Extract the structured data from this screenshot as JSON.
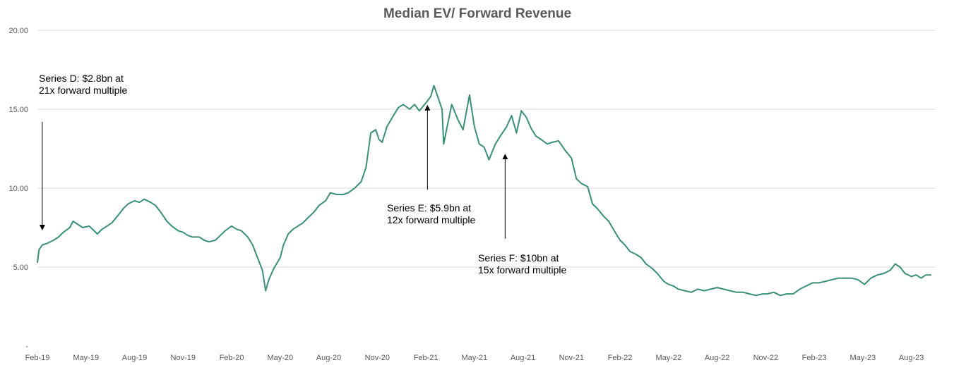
{
  "chart_data": {
    "type": "line",
    "title": "Median EV/ Forward Revenue",
    "xlabel": "",
    "ylabel": "",
    "ylim": [
      0,
      20
    ],
    "grid": true,
    "y_ticks": [
      {
        "value": 0,
        "label": "-"
      },
      {
        "value": 5,
        "label": "5.00"
      },
      {
        "value": 10,
        "label": "10.00"
      },
      {
        "value": 15,
        "label": "15.00"
      },
      {
        "value": 20,
        "label": "20.00"
      }
    ],
    "x_ticks": [
      {
        "index": 0,
        "label": "Feb-19"
      },
      {
        "index": 3,
        "label": "May-19"
      },
      {
        "index": 6,
        "label": "Aug-19"
      },
      {
        "index": 9,
        "label": "Nov-19"
      },
      {
        "index": 12,
        "label": "Feb-20"
      },
      {
        "index": 15,
        "label": "May-20"
      },
      {
        "index": 18,
        "label": "Aug-20"
      },
      {
        "index": 21,
        "label": "Nov-20"
      },
      {
        "index": 24,
        "label": "Feb-21"
      },
      {
        "index": 27,
        "label": "May-21"
      },
      {
        "index": 30,
        "label": "Aug-21"
      },
      {
        "index": 33,
        "label": "Nov-21"
      },
      {
        "index": 36,
        "label": "Feb-22"
      },
      {
        "index": 39,
        "label": "May-22"
      },
      {
        "index": 42,
        "label": "Aug-22"
      },
      {
        "index": 45,
        "label": "Nov-22"
      },
      {
        "index": 48,
        "label": "Feb-23"
      },
      {
        "index": 51,
        "label": "May-23"
      },
      {
        "index": 54,
        "label": "Aug-23"
      }
    ],
    "x_range": [
      0,
      55.5
    ],
    "series": [
      {
        "name": "Median EV/ Forward Revenue",
        "color": "#3a8f77",
        "points": [
          [
            0,
            5.3
          ],
          [
            0.1,
            6.1
          ],
          [
            0.3,
            6.4
          ],
          [
            0.6,
            6.5
          ],
          [
            1.0,
            6.7
          ],
          [
            1.3,
            6.9
          ],
          [
            1.6,
            7.2
          ],
          [
            2.0,
            7.5
          ],
          [
            2.2,
            7.9
          ],
          [
            2.5,
            7.7
          ],
          [
            2.8,
            7.5
          ],
          [
            3.2,
            7.6
          ],
          [
            3.5,
            7.3
          ],
          [
            3.7,
            7.1
          ],
          [
            4.0,
            7.4
          ],
          [
            4.3,
            7.6
          ],
          [
            4.6,
            7.8
          ],
          [
            5.0,
            8.3
          ],
          [
            5.3,
            8.7
          ],
          [
            5.6,
            9.0
          ],
          [
            6.0,
            9.2
          ],
          [
            6.3,
            9.1
          ],
          [
            6.6,
            9.3
          ],
          [
            7.0,
            9.1
          ],
          [
            7.3,
            8.9
          ],
          [
            7.6,
            8.5
          ],
          [
            8.0,
            7.9
          ],
          [
            8.3,
            7.6
          ],
          [
            8.7,
            7.3
          ],
          [
            9.0,
            7.2
          ],
          [
            9.3,
            7.0
          ],
          [
            9.6,
            6.9
          ],
          [
            10.0,
            6.9
          ],
          [
            10.3,
            6.7
          ],
          [
            10.6,
            6.6
          ],
          [
            11.0,
            6.7
          ],
          [
            11.3,
            7.0
          ],
          [
            11.6,
            7.3
          ],
          [
            12.0,
            7.6
          ],
          [
            12.3,
            7.4
          ],
          [
            12.6,
            7.3
          ],
          [
            13.0,
            6.9
          ],
          [
            13.3,
            6.4
          ],
          [
            13.6,
            5.6
          ],
          [
            13.9,
            4.8
          ],
          [
            14.1,
            3.5
          ],
          [
            14.3,
            4.2
          ],
          [
            14.6,
            4.9
          ],
          [
            15.0,
            5.6
          ],
          [
            15.2,
            6.4
          ],
          [
            15.5,
            7.1
          ],
          [
            15.8,
            7.4
          ],
          [
            16.1,
            7.6
          ],
          [
            16.4,
            7.8
          ],
          [
            16.8,
            8.2
          ],
          [
            17.1,
            8.5
          ],
          [
            17.4,
            8.9
          ],
          [
            17.8,
            9.2
          ],
          [
            18.1,
            9.7
          ],
          [
            18.5,
            9.6
          ],
          [
            18.9,
            9.6
          ],
          [
            19.2,
            9.7
          ],
          [
            19.6,
            10.0
          ],
          [
            20.0,
            10.4
          ],
          [
            20.3,
            11.3
          ],
          [
            20.6,
            13.5
          ],
          [
            20.9,
            13.7
          ],
          [
            21.1,
            13.1
          ],
          [
            21.3,
            12.9
          ],
          [
            21.6,
            13.9
          ],
          [
            22.0,
            14.6
          ],
          [
            22.3,
            15.1
          ],
          [
            22.6,
            15.3
          ],
          [
            23.0,
            15.0
          ],
          [
            23.3,
            15.3
          ],
          [
            23.6,
            14.9
          ],
          [
            24.0,
            15.4
          ],
          [
            24.3,
            15.8
          ],
          [
            24.5,
            16.5
          ],
          [
            24.7,
            15.9
          ],
          [
            25.0,
            15.0
          ],
          [
            25.1,
            12.8
          ],
          [
            25.3,
            13.8
          ],
          [
            25.6,
            15.3
          ],
          [
            26.0,
            14.3
          ],
          [
            26.3,
            13.7
          ],
          [
            26.7,
            15.9
          ],
          [
            27.0,
            13.9
          ],
          [
            27.3,
            12.8
          ],
          [
            27.6,
            12.6
          ],
          [
            27.9,
            11.8
          ],
          [
            28.3,
            12.8
          ],
          [
            28.6,
            13.3
          ],
          [
            29.0,
            13.9
          ],
          [
            29.3,
            14.6
          ],
          [
            29.6,
            13.5
          ],
          [
            29.9,
            14.9
          ],
          [
            30.2,
            14.5
          ],
          [
            30.5,
            13.8
          ],
          [
            30.8,
            13.3
          ],
          [
            31.1,
            13.1
          ],
          [
            31.5,
            12.8
          ],
          [
            31.8,
            12.9
          ],
          [
            32.2,
            13.0
          ],
          [
            32.6,
            12.4
          ],
          [
            33.0,
            11.9
          ],
          [
            33.3,
            10.6
          ],
          [
            33.6,
            10.3
          ],
          [
            34.0,
            10.1
          ],
          [
            34.3,
            9.0
          ],
          [
            34.6,
            8.7
          ],
          [
            35.0,
            8.2
          ],
          [
            35.3,
            7.9
          ],
          [
            35.7,
            7.2
          ],
          [
            36.0,
            6.7
          ],
          [
            36.3,
            6.4
          ],
          [
            36.6,
            6.0
          ],
          [
            37.0,
            5.8
          ],
          [
            37.3,
            5.6
          ],
          [
            37.6,
            5.2
          ],
          [
            38.0,
            4.9
          ],
          [
            38.3,
            4.6
          ],
          [
            38.7,
            4.1
          ],
          [
            39.0,
            3.9
          ],
          [
            39.3,
            3.8
          ],
          [
            39.6,
            3.6
          ],
          [
            40.0,
            3.5
          ],
          [
            40.4,
            3.4
          ],
          [
            40.8,
            3.6
          ],
          [
            41.2,
            3.5
          ],
          [
            41.6,
            3.6
          ],
          [
            42.0,
            3.7
          ],
          [
            42.4,
            3.6
          ],
          [
            42.8,
            3.5
          ],
          [
            43.2,
            3.4
          ],
          [
            43.6,
            3.4
          ],
          [
            44.0,
            3.3
          ],
          [
            44.4,
            3.2
          ],
          [
            44.8,
            3.3
          ],
          [
            45.1,
            3.3
          ],
          [
            45.5,
            3.4
          ],
          [
            45.9,
            3.2
          ],
          [
            46.3,
            3.3
          ],
          [
            46.7,
            3.3
          ],
          [
            47.1,
            3.6
          ],
          [
            47.5,
            3.8
          ],
          [
            47.9,
            4.0
          ],
          [
            48.3,
            4.0
          ],
          [
            48.7,
            4.1
          ],
          [
            49.1,
            4.2
          ],
          [
            49.5,
            4.3
          ],
          [
            49.9,
            4.3
          ],
          [
            50.3,
            4.3
          ],
          [
            50.7,
            4.2
          ],
          [
            51.1,
            3.9
          ],
          [
            51.5,
            4.3
          ],
          [
            51.9,
            4.5
          ],
          [
            52.3,
            4.6
          ],
          [
            52.7,
            4.8
          ],
          [
            53.0,
            5.2
          ],
          [
            53.3,
            5.0
          ],
          [
            53.6,
            4.6
          ],
          [
            54.0,
            4.4
          ],
          [
            54.3,
            4.5
          ],
          [
            54.6,
            4.3
          ],
          [
            54.9,
            4.5
          ],
          [
            55.2,
            4.5
          ]
        ]
      }
    ],
    "annotations": [
      {
        "lines": [
          "Series D: $2.8bn at",
          "21x forward multiple"
        ],
        "arrow": {
          "x": 0.3,
          "y_from": 14.2,
          "y_to": 7.5,
          "direction": "down"
        }
      },
      {
        "lines": [
          "Series E: $5.9bn at",
          "12x forward multiple"
        ],
        "arrow": {
          "x": 24.1,
          "y_from": 9.9,
          "y_to": 15.1,
          "direction": "up"
        }
      },
      {
        "lines": [
          "Series F: $10bn at",
          "15x forward multiple"
        ],
        "arrow": {
          "x": 28.9,
          "y_from": 6.8,
          "y_to": 12.0,
          "direction": "up"
        }
      }
    ]
  }
}
